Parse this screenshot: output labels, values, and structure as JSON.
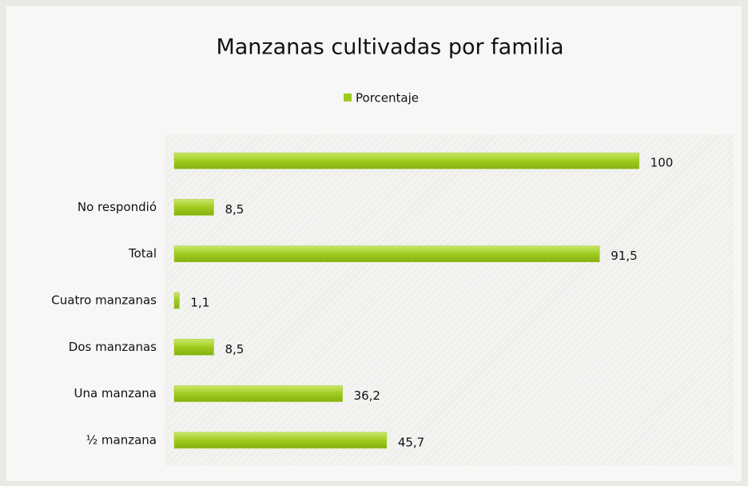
{
  "chart_data": {
    "type": "bar",
    "orientation": "horizontal",
    "title": "Manzanas cultivadas por familia",
    "legend": "top",
    "categories": [
      null,
      "No respondió",
      "Total",
      "Cuatro manzanas",
      "Dos manzanas",
      "Una manzana",
      "½ manzana"
    ],
    "series": [
      {
        "name": "Porcentaje",
        "color": "#9fcb1f",
        "values": [
          100,
          8.5,
          91.5,
          1.1,
          8.5,
          36.2,
          45.7
        ],
        "value_labels": [
          "100",
          "8,5",
          "91,5",
          "1,1",
          "8,5",
          "36,2",
          "45,7"
        ]
      }
    ],
    "xlim": [
      0,
      120
    ]
  }
}
